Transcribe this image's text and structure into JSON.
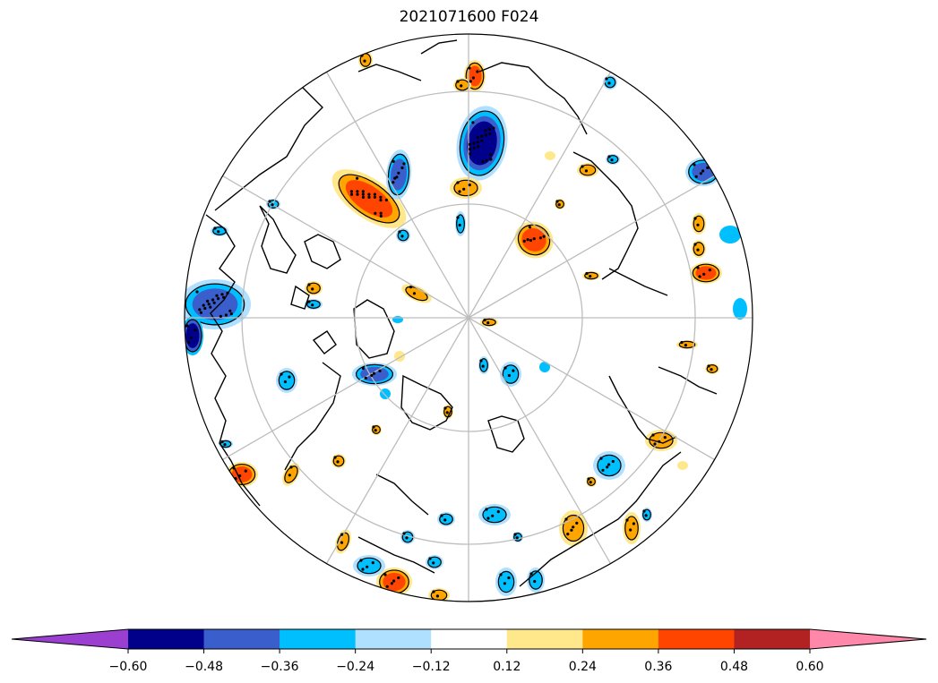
{
  "title": "2021071600 F024",
  "colorbar": {
    "bounds": [
      -0.6,
      -0.48,
      -0.36,
      -0.24,
      -0.12,
      0.12,
      0.24,
      0.36,
      0.48,
      0.6
    ],
    "tick_labels": [
      "−0.60",
      "−0.48",
      "−0.36",
      "−0.24",
      "−0.12",
      "0.12",
      "0.24",
      "0.36",
      "0.48",
      "0.60"
    ],
    "colors": {
      "under": "#9a3fd0",
      "bins": [
        "#00008b",
        "#3a5fcd",
        "#00bfff",
        "#b0e0ff",
        "#ffffff",
        "#ffe88c",
        "#ffa500",
        "#ff4500",
        "#b22222"
      ],
      "over": "#ff88aa"
    },
    "extend": "both"
  },
  "map": {
    "projection": "north-polar-stereographic",
    "graticule": true,
    "stippling": true
  }
}
